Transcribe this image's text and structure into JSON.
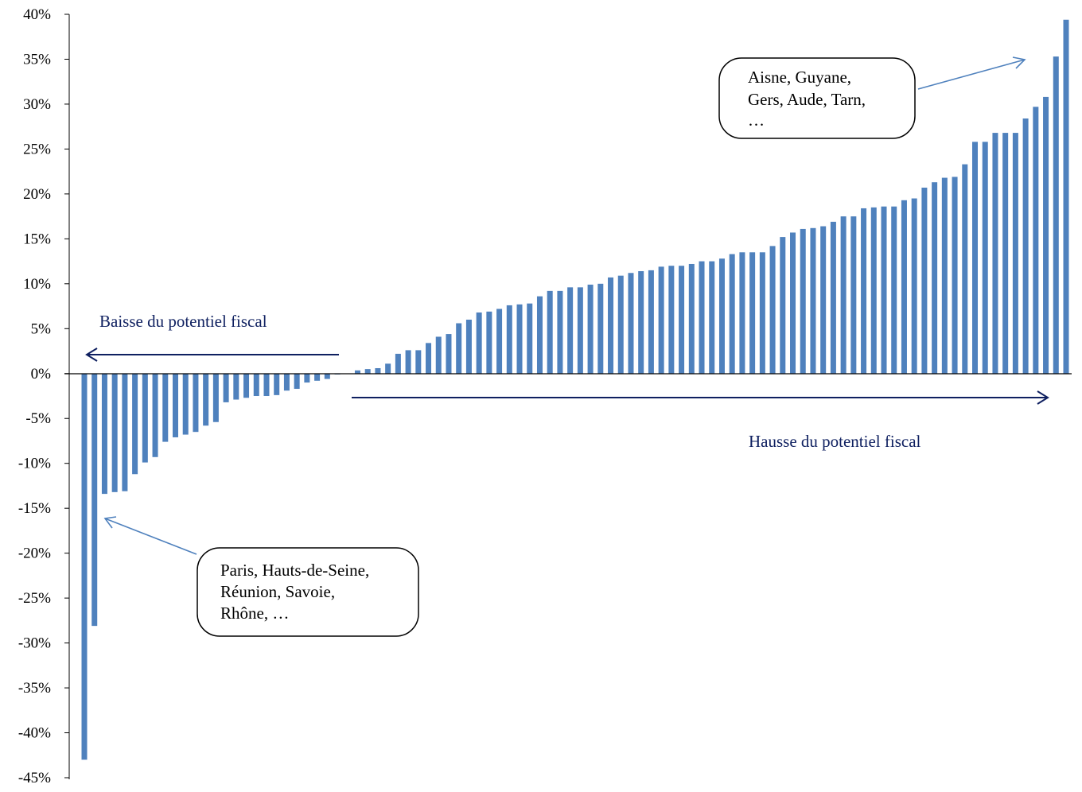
{
  "chart_data": {
    "type": "bar",
    "title": "",
    "xlabel": "",
    "ylabel": "",
    "ylim": [
      -45,
      40
    ],
    "yticks": [
      "40%",
      "35%",
      "30%",
      "25%",
      "20%",
      "15%",
      "10%",
      "5%",
      "0%",
      "-5%",
      "-10%",
      "-15%",
      "-20%",
      "-25%",
      "-30%",
      "-35%",
      "-40%",
      "-45%"
    ],
    "grid": false,
    "bar_color": "#4f81bd",
    "values": [
      -43.0,
      -28.1,
      -13.4,
      -13.2,
      -13.1,
      -11.2,
      -9.9,
      -9.3,
      -7.6,
      -7.1,
      -6.8,
      -6.5,
      -5.8,
      -5.4,
      -3.2,
      -2.9,
      -2.7,
      -2.5,
      -2.5,
      -2.4,
      -1.9,
      -1.7,
      -1.0,
      -0.8,
      -0.6,
      -0.1,
      0.0,
      0.35,
      0.5,
      0.6,
      1.1,
      2.2,
      2.6,
      2.6,
      3.4,
      4.1,
      4.4,
      5.6,
      6.0,
      6.8,
      6.9,
      7.2,
      7.6,
      7.7,
      7.8,
      8.6,
      9.2,
      9.2,
      9.6,
      9.6,
      9.9,
      10.0,
      10.7,
      10.9,
      11.2,
      11.4,
      11.5,
      11.9,
      12.0,
      12.0,
      12.2,
      12.5,
      12.5,
      12.8,
      13.3,
      13.5,
      13.5,
      13.5,
      14.2,
      15.2,
      15.7,
      16.1,
      16.2,
      16.4,
      16.9,
      17.5,
      17.5,
      18.4,
      18.5,
      18.6,
      18.6,
      19.3,
      19.5,
      20.7,
      21.3,
      21.8,
      21.9,
      23.3,
      25.8,
      25.8,
      26.8,
      26.8,
      26.8,
      28.4,
      29.7,
      30.8,
      35.3,
      39.4
    ],
    "annotations": {
      "decrease_label": "Baisse du potentiel fiscal",
      "increase_label": "Hausse du potentiel fiscal",
      "top_callout": [
        "Aisne, Guyane,",
        "Gers, Aude, Tarn,",
        "…"
      ],
      "bottom_callout": [
        "Paris, Hauts-de-Seine,",
        "Réunion, Savoie,",
        "Rhône, …"
      ]
    }
  }
}
